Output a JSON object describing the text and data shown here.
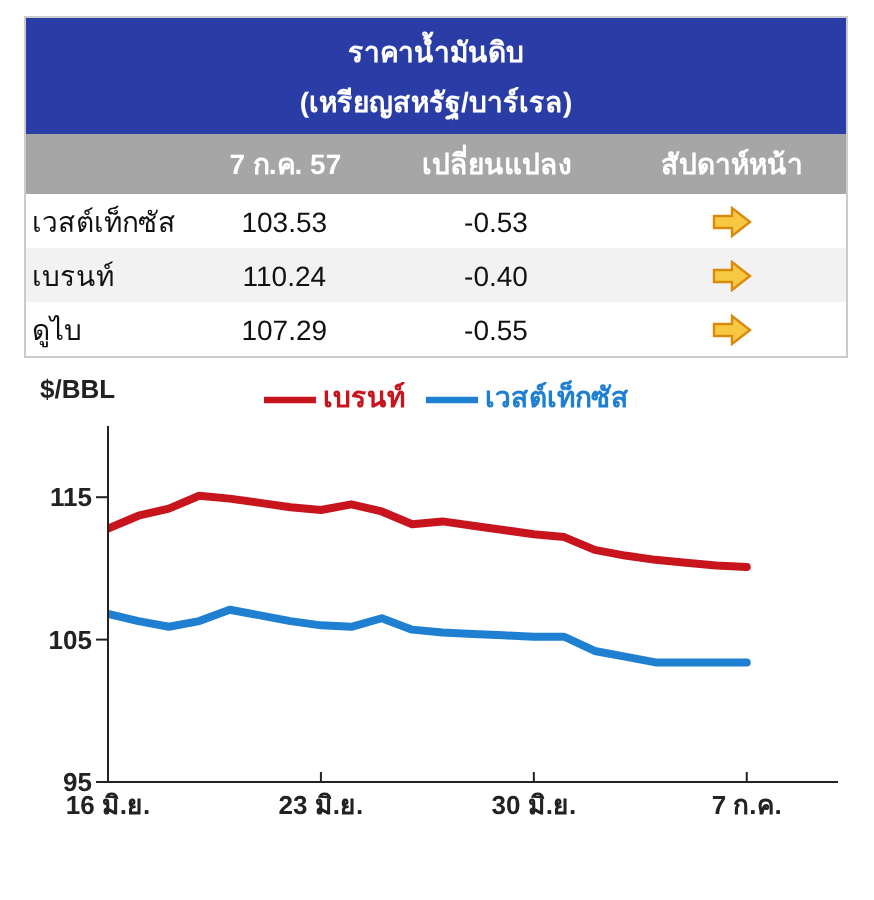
{
  "chart_data": [
    {
      "type": "other",
      "title": "ราคาน้ำมันดิบ",
      "subtitle": "(เหรียญสหรัฐ/บาร์เรล)",
      "annotations": [
        "7 ก.ค. 57",
        "เปลี่ยนแปลง",
        "สัปดาห์หน้า",
        "เวสต์เท็กซัส",
        "103.53",
        "-0.53",
        "เบรนท์",
        "110.24",
        "-0.40",
        "ดูไบ",
        "107.29",
        "-0.55"
      ]
    },
    {
      "type": "line",
      "ylabel": "$/BBL",
      "x": [
        "--06-16",
        "--06-17",
        "--06-18",
        "--06-19",
        "--06-20",
        "--06-21",
        "--06-22",
        "--06-23",
        "--06-24",
        "--06-25",
        "--06-26",
        "--06-27",
        "--06-28",
        "--06-29",
        "--06-30",
        "--07-01",
        "--07-02",
        "--07-03",
        "--07-04",
        "--07-05",
        "--07-06",
        "--07-07"
      ],
      "series": [
        {
          "name": "เวสต์เท็กซัส",
          "color": "#1f7fd0",
          "values": [
            106.8,
            106.3,
            105.9,
            106.3,
            107.1,
            106.7,
            106.3,
            106.0,
            105.9,
            106.5,
            105.7,
            105.5,
            105.4,
            105.3,
            105.2,
            105.2,
            104.2,
            103.8,
            103.4,
            103.4,
            103.4,
            103.4
          ]
        },
        {
          "name": "เบรนท์",
          "color": "#c8141c",
          "values": [
            112.8,
            113.7,
            114.2,
            115.1,
            114.9,
            114.6,
            114.3,
            114.1,
            114.5,
            114.0,
            113.1,
            113.3,
            113.0,
            112.7,
            112.4,
            112.2,
            111.3,
            110.9,
            110.6,
            110.4,
            110.2,
            110.1
          ]
        }
      ],
      "xlim": [
        "--06-16",
        "--07-10"
      ],
      "xticks": [
        {
          "value": "--06-16",
          "label": "16 มิ.ย."
        },
        {
          "value": "--06-23",
          "label": "23 มิ.ย."
        },
        {
          "value": "--06-30",
          "label": "30 มิ.ย."
        },
        {
          "value": "--07-07",
          "label": "7 ก.ค."
        }
      ],
      "ylim": [
        95,
        120
      ],
      "yticks": [
        95,
        105,
        115
      ],
      "grid": false,
      "legend": "top",
      "marker": "none",
      "line_style": "solid"
    }
  ]
}
